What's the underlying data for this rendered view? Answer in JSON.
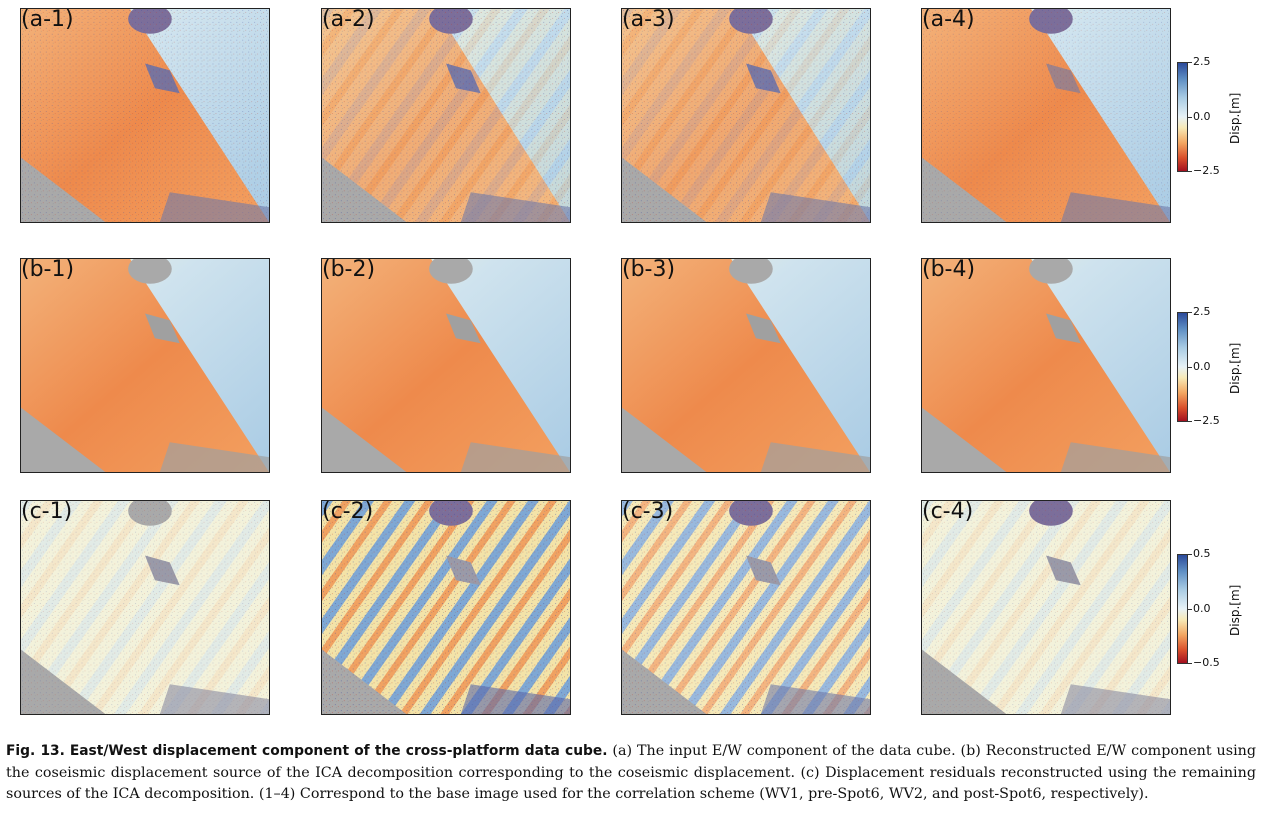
{
  "panels": {
    "a1": "(a-1)",
    "a2": "(a-2)",
    "a3": "(a-3)",
    "a4": "(a-4)",
    "b1": "(b-1)",
    "b2": "(b-2)",
    "b3": "(b-3)",
    "b4": "(b-4)",
    "c1": "(c-1)",
    "c2": "(c-2)",
    "c3": "(c-3)",
    "c4": "(c-4)"
  },
  "colorbars": {
    "ab_top": "2.5",
    "ab_mid": "0.0",
    "ab_bottom": "−2.5",
    "c_top": "0.5",
    "c_mid": "0.0",
    "c_bottom": "−0.5",
    "label": "Disp.[m]"
  },
  "colors": {
    "west": "#f0884a",
    "east": "#bcd8ea",
    "nodata": "#a9a9a9",
    "residual_bg": "#eef0d8"
  },
  "caption": {
    "fig_label": "Fig. 13.",
    "fig_title": "East/West displacement component of the cross-platform data cube.",
    "body": "(a) The input E/W component of the data cube. (b) Reconstructed E/W component using the coseismic displacement source of the ICA decomposition corresponding to the coseismic displacement. (c) Displacement residuals reconstructed using the remaining sources of the ICA decomposition. (1–4) Correspond to the base image used for the correlation scheme (WV1, pre-Spot6, WV2, and post-Spot6, respectively)."
  }
}
